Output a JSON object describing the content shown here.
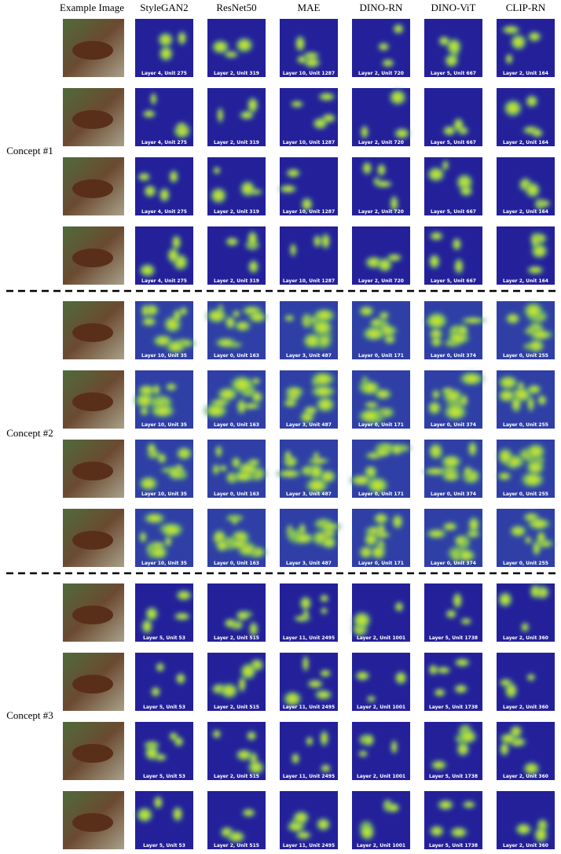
{
  "headers": [
    "Example Image",
    "StyleGAN2",
    "ResNet50",
    "MAE",
    "DINO-RN",
    "DINO-ViT",
    "CLIP-RN"
  ],
  "groups": [
    {
      "label": "Concept #1",
      "units": [
        "Layer 4, Unit 275",
        "Layer 2, Unit 319",
        "Layer 10, Unit 1287",
        "Layer 2, Unit 720",
        "Layer 5, Unit 667",
        "Layer 2, Unit 164"
      ]
    },
    {
      "label": "Concept #2",
      "units": [
        "Layer 10, Unit 35",
        "Layer 0, Unit 163",
        "Layer 3, Unit 487",
        "Layer 0, Unit 171",
        "Layer 0, Unit 374",
        "Layer 0, Unit 255"
      ]
    },
    {
      "label": "Concept #3",
      "units": [
        "Layer 5, Unit 53",
        "Layer 2, Unit 515",
        "Layer 11, Unit 2495",
        "Layer 2, Unit 1001",
        "Layer 5, Unit 1738",
        "Layer 2, Unit 360"
      ]
    }
  ]
}
